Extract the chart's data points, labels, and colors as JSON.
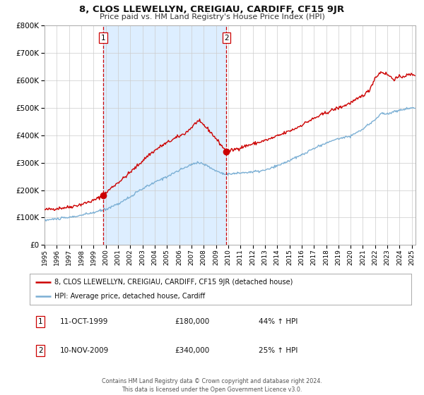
{
  "title": "8, CLOS LLEWELLYN, CREIGIAU, CARDIFF, CF15 9JR",
  "subtitle": "Price paid vs. HM Land Registry's House Price Index (HPI)",
  "legend_line1": "8, CLOS LLEWELLYN, CREIGIAU, CARDIFF, CF15 9JR (detached house)",
  "legend_line2": "HPI: Average price, detached house, Cardiff",
  "annotation1_date": "11-OCT-1999",
  "annotation1_price": "£180,000",
  "annotation1_hpi": "44% ↑ HPI",
  "annotation2_date": "10-NOV-2009",
  "annotation2_price": "£340,000",
  "annotation2_hpi": "25% ↑ HPI",
  "footer": "Contains HM Land Registry data © Crown copyright and database right 2024.\nThis data is licensed under the Open Government Licence v3.0.",
  "sale1_year": 1999.78,
  "sale1_value": 180000,
  "sale2_year": 2009.86,
  "sale2_value": 340000,
  "price_line_color": "#cc0000",
  "hpi_line_color": "#7bafd4",
  "shading_color": "#ddeeff",
  "dashed_line_color": "#cc0000",
  "background_color": "#ffffff",
  "grid_color": "#cccccc",
  "ylim": [
    0,
    800000
  ],
  "xlim_start": 1995.0,
  "xlim_end": 2025.3
}
